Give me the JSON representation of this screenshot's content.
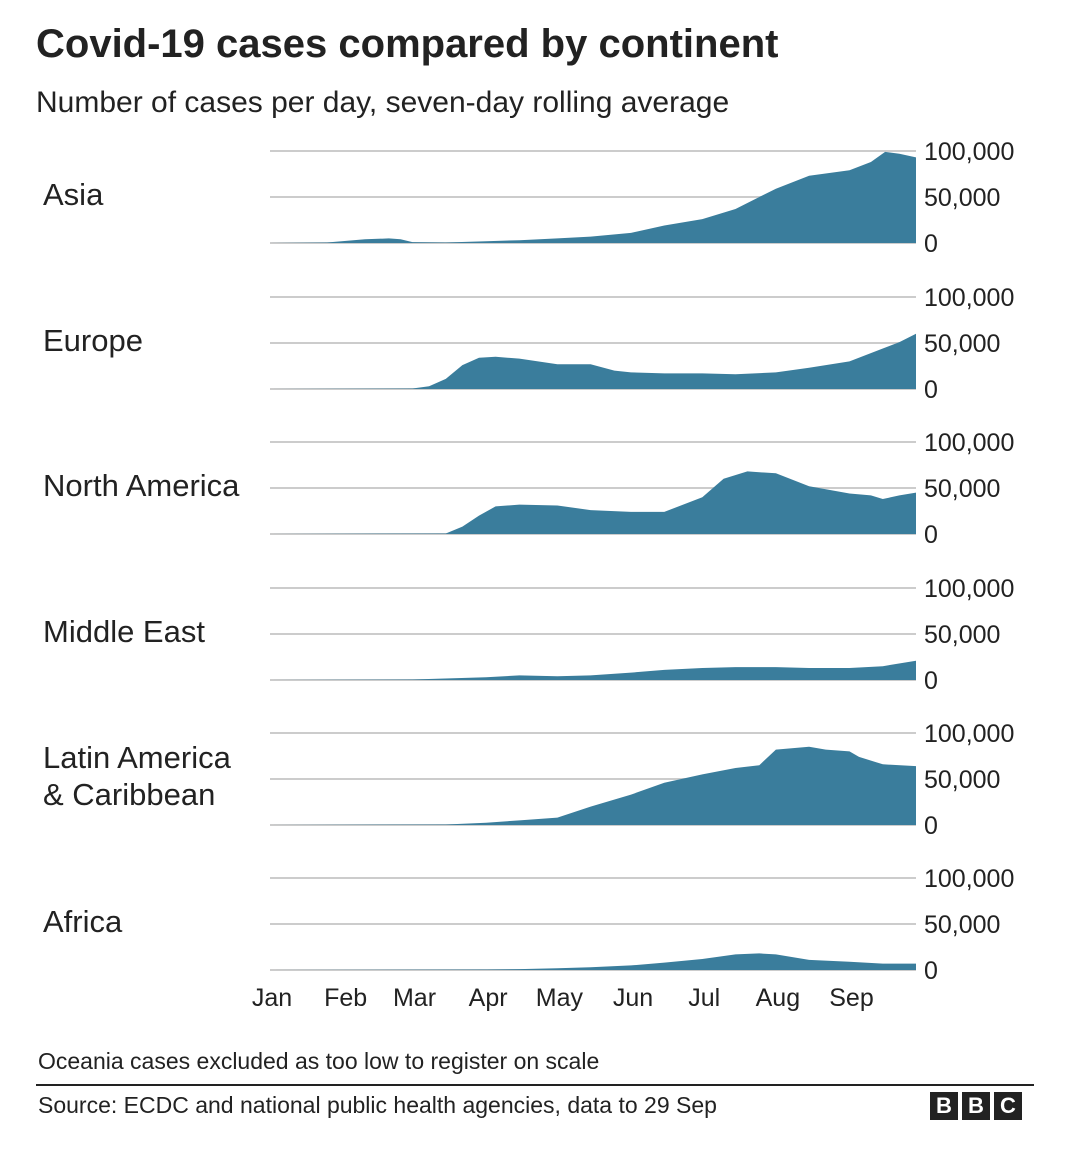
{
  "chart_data": {
    "type": "area",
    "title": "Covid-19 cases compared by continent",
    "subtitle": "Number of cases per day, seven-day rolling average",
    "x_ticks": [
      "Jan",
      "Feb",
      "Mar",
      "Apr",
      "May",
      "Jun",
      "Jul",
      "Aug",
      "Sep"
    ],
    "x_range": [
      "2020-01-01",
      "2020-09-29"
    ],
    "y_ticks": [
      0,
      50000,
      100000
    ],
    "y_tick_labels": [
      "0",
      "50,000",
      "100,000"
    ],
    "ylim": [
      0,
      100000
    ],
    "grid": true,
    "colors": {
      "area": "#3a7d9c",
      "grid": "#cccccc",
      "text": "#222222"
    },
    "panels": [
      {
        "name": "Asia",
        "x": [
          "2020-01-01",
          "2020-01-25",
          "2020-02-10",
          "2020-02-20",
          "2020-02-25",
          "2020-03-01",
          "2020-03-15",
          "2020-04-01",
          "2020-04-15",
          "2020-05-01",
          "2020-05-15",
          "2020-06-01",
          "2020-06-15",
          "2020-07-01",
          "2020-07-15",
          "2020-08-01",
          "2020-08-15",
          "2020-09-01",
          "2020-09-10",
          "2020-09-16",
          "2020-09-22",
          "2020-09-29"
        ],
        "values": [
          0,
          500,
          4000,
          5000,
          4000,
          1000,
          500,
          2000,
          3000,
          5000,
          7000,
          11000,
          19000,
          26000,
          37000,
          59000,
          73000,
          79000,
          88000,
          99000,
          97000,
          93000
        ]
      },
      {
        "name": "Europe",
        "x": [
          "2020-01-01",
          "2020-03-01",
          "2020-03-08",
          "2020-03-15",
          "2020-03-22",
          "2020-03-29",
          "2020-04-05",
          "2020-04-15",
          "2020-05-01",
          "2020-05-15",
          "2020-05-25",
          "2020-06-01",
          "2020-06-15",
          "2020-07-01",
          "2020-07-15",
          "2020-08-01",
          "2020-08-15",
          "2020-09-01",
          "2020-09-15",
          "2020-09-22",
          "2020-09-29"
        ],
        "values": [
          0,
          500,
          3000,
          11000,
          26000,
          34000,
          35000,
          33000,
          27000,
          27000,
          20000,
          18000,
          17000,
          17000,
          16000,
          18000,
          23000,
          30000,
          44000,
          51000,
          60000
        ]
      },
      {
        "name": "North America",
        "x": [
          "2020-01-01",
          "2020-03-15",
          "2020-03-22",
          "2020-03-29",
          "2020-04-05",
          "2020-04-15",
          "2020-05-01",
          "2020-05-15",
          "2020-06-01",
          "2020-06-15",
          "2020-07-01",
          "2020-07-10",
          "2020-07-20",
          "2020-08-01",
          "2020-08-15",
          "2020-09-01",
          "2020-09-10",
          "2020-09-15",
          "2020-09-22",
          "2020-09-29"
        ],
        "values": [
          0,
          500,
          8000,
          20000,
          30000,
          32000,
          31000,
          26000,
          24000,
          24000,
          40000,
          60000,
          68000,
          66000,
          52000,
          44000,
          42000,
          38000,
          42000,
          45000
        ]
      },
      {
        "name": "Middle East",
        "x": [
          "2020-01-01",
          "2020-03-01",
          "2020-04-01",
          "2020-04-15",
          "2020-05-01",
          "2020-05-15",
          "2020-06-01",
          "2020-06-15",
          "2020-07-01",
          "2020-07-15",
          "2020-08-01",
          "2020-08-15",
          "2020-09-01",
          "2020-09-15",
          "2020-09-29"
        ],
        "values": [
          0,
          500,
          3000,
          5000,
          4000,
          5000,
          8000,
          11000,
          13000,
          14000,
          14000,
          13000,
          13000,
          15000,
          21000
        ]
      },
      {
        "name": "Latin America & Caribbean",
        "x": [
          "2020-01-01",
          "2020-03-15",
          "2020-04-01",
          "2020-04-15",
          "2020-05-01",
          "2020-05-15",
          "2020-06-01",
          "2020-06-15",
          "2020-07-01",
          "2020-07-15",
          "2020-07-25",
          "2020-08-01",
          "2020-08-15",
          "2020-08-22",
          "2020-09-01",
          "2020-09-05",
          "2020-09-15",
          "2020-09-29"
        ],
        "values": [
          0,
          500,
          2500,
          5000,
          8000,
          20000,
          33000,
          46000,
          55000,
          62000,
          65000,
          82000,
          85000,
          82000,
          80000,
          74000,
          66000,
          64000
        ]
      },
      {
        "name": "Africa",
        "x": [
          "2020-01-01",
          "2020-04-01",
          "2020-04-15",
          "2020-05-01",
          "2020-05-15",
          "2020-06-01",
          "2020-06-15",
          "2020-07-01",
          "2020-07-15",
          "2020-07-25",
          "2020-08-01",
          "2020-08-15",
          "2020-09-01",
          "2020-09-15",
          "2020-09-29"
        ],
        "values": [
          0,
          500,
          1000,
          2000,
          3000,
          5000,
          8000,
          12000,
          17000,
          18000,
          17000,
          11000,
          9000,
          7000,
          7000
        ]
      }
    ]
  },
  "footnote": "Oceania cases excluded as too low to register on scale",
  "source": "Source: ECDC and national public health agencies, data to 29 Sep",
  "logo": {
    "text": "BBC",
    "letters": [
      "B",
      "B",
      "C"
    ]
  }
}
